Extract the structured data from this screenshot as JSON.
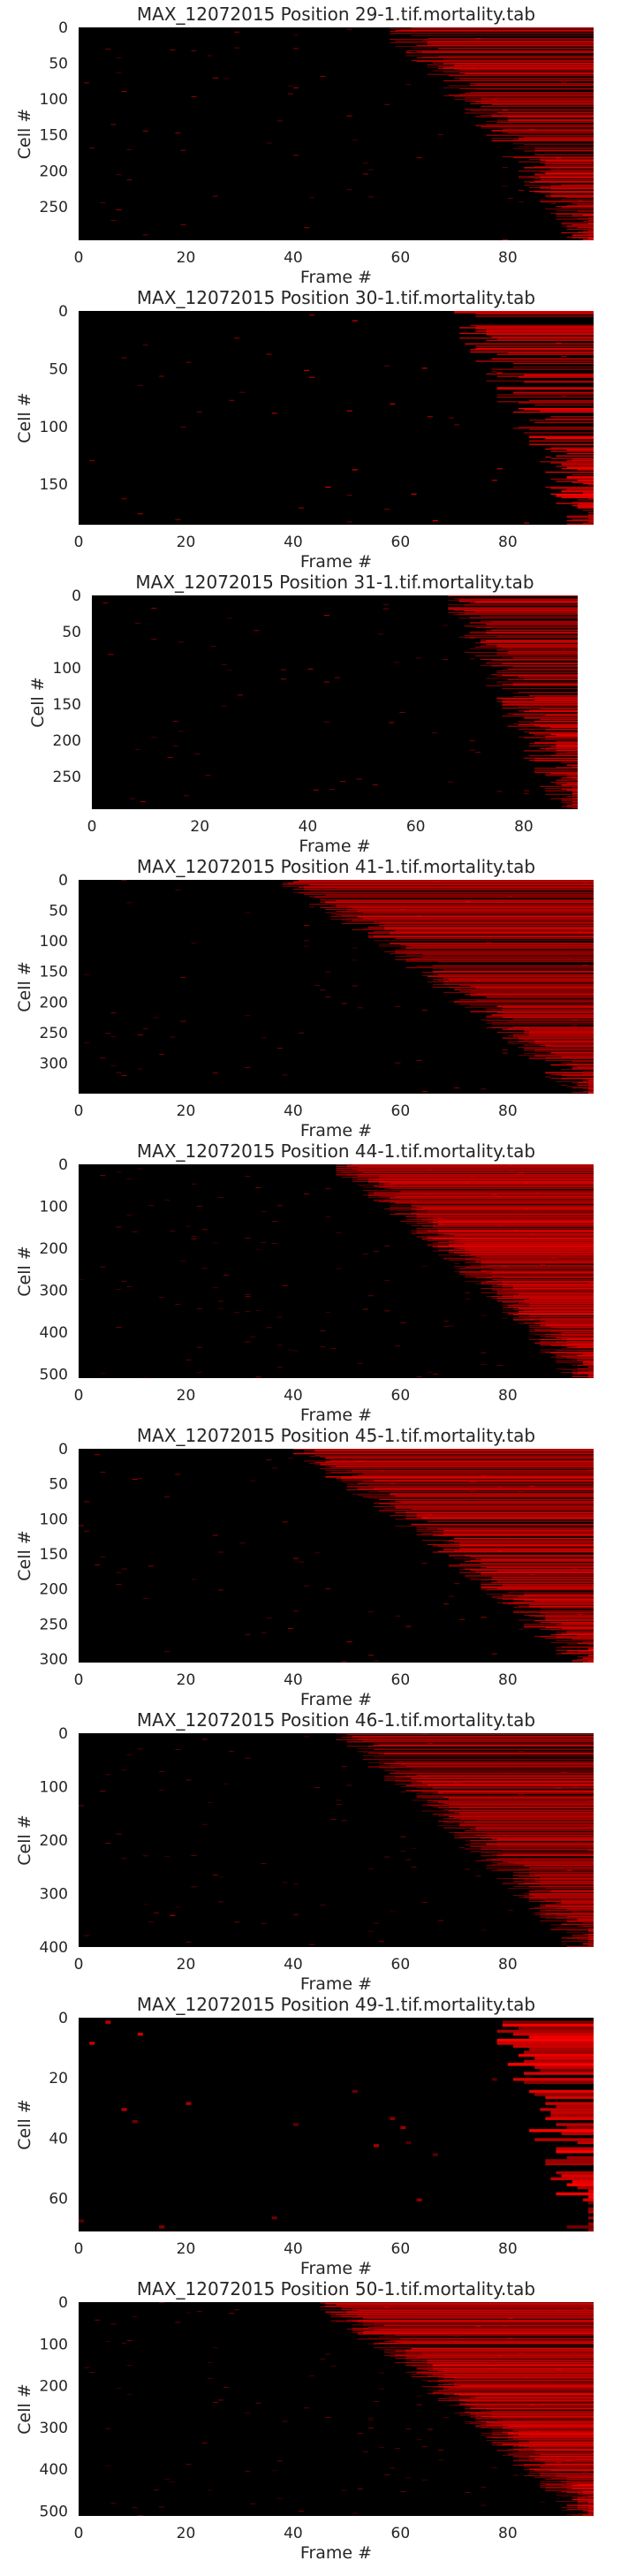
{
  "figure": {
    "background": "#ffffff",
    "text_color": "#262626",
    "heatmap_colors": {
      "low": "#000000",
      "high": "#ff0000"
    }
  },
  "chart_data": [
    {
      "type": "heatmap",
      "title": "MAX_12072015 Position 29-1.tif.mortality.tab",
      "xlabel": "Frame #",
      "ylabel": "Cell #",
      "xlim": [
        0,
        96
      ],
      "ylim": [
        0,
        297
      ],
      "x_ticks": [
        0,
        20,
        40,
        60,
        80
      ],
      "y_ticks": [
        0,
        50,
        100,
        150,
        200,
        250
      ],
      "n_cells": 297,
      "n_frames": 96,
      "onset_range": [
        58,
        95
      ],
      "never_dead_fraction": 0.45,
      "grid": false
    },
    {
      "type": "heatmap",
      "title": "MAX_12072015 Position 30-1.tif.mortality.tab",
      "xlabel": "Frame #",
      "ylabel": "Cell #",
      "xlim": [
        0,
        96
      ],
      "ylim": [
        0,
        185
      ],
      "x_ticks": [
        0,
        20,
        40,
        60,
        80
      ],
      "y_ticks": [
        0,
        50,
        100,
        150
      ],
      "n_cells": 185,
      "n_frames": 96,
      "onset_range": [
        70,
        95
      ],
      "never_dead_fraction": 0.4,
      "grid": false
    },
    {
      "type": "heatmap",
      "title": "MAX_12072015 Position 31-1.tif.mortality.tab",
      "xlabel": "Frame #",
      "ylabel": "Cell #",
      "xlim": [
        0,
        90
      ],
      "ylim": [
        0,
        295
      ],
      "x_ticks": [
        0,
        20,
        40,
        60,
        80
      ],
      "y_ticks": [
        0,
        50,
        100,
        150,
        200,
        250
      ],
      "n_cells": 295,
      "n_frames": 90,
      "onset_range": [
        66,
        89
      ],
      "never_dead_fraction": 0.35,
      "grid": false
    },
    {
      "type": "heatmap",
      "title": "MAX_12072015 Position 41-1.tif.mortality.tab",
      "xlabel": "Frame #",
      "ylabel": "Cell #",
      "xlim": [
        0,
        96
      ],
      "ylim": [
        0,
        350
      ],
      "x_ticks": [
        0,
        20,
        40,
        60,
        80
      ],
      "y_ticks": [
        0,
        50,
        100,
        150,
        200,
        250,
        300
      ],
      "n_cells": 350,
      "n_frames": 96,
      "onset_range": [
        38,
        95
      ],
      "never_dead_fraction": 0.3,
      "grid": false
    },
    {
      "type": "heatmap",
      "title": "MAX_12072015 Position 44-1.tif.mortality.tab",
      "xlabel": "Frame #",
      "ylabel": "Cell #",
      "xlim": [
        0,
        96
      ],
      "ylim": [
        0,
        510
      ],
      "x_ticks": [
        0,
        20,
        40,
        60,
        80
      ],
      "y_ticks": [
        0,
        100,
        200,
        300,
        400,
        500
      ],
      "n_cells": 510,
      "n_frames": 96,
      "onset_range": [
        48,
        95
      ],
      "never_dead_fraction": 0.25,
      "grid": false
    },
    {
      "type": "heatmap",
      "title": "MAX_12072015 Position 45-1.tif.mortality.tab",
      "xlabel": "Frame #",
      "ylabel": "Cell #",
      "xlim": [
        0,
        96
      ],
      "ylim": [
        0,
        305
      ],
      "x_ticks": [
        0,
        20,
        40,
        60,
        80
      ],
      "y_ticks": [
        0,
        50,
        100,
        150,
        200,
        250,
        300
      ],
      "n_cells": 305,
      "n_frames": 96,
      "onset_range": [
        40,
        95
      ],
      "never_dead_fraction": 0.25,
      "grid": false
    },
    {
      "type": "heatmap",
      "title": "MAX_12072015 Position 46-1.tif.mortality.tab",
      "xlabel": "Frame #",
      "ylabel": "Cell #",
      "xlim": [
        0,
        96
      ],
      "ylim": [
        0,
        400
      ],
      "x_ticks": [
        0,
        20,
        40,
        60,
        80
      ],
      "y_ticks": [
        0,
        100,
        200,
        300,
        400
      ],
      "n_cells": 400,
      "n_frames": 96,
      "onset_range": [
        48,
        95
      ],
      "never_dead_fraction": 0.3,
      "grid": false
    },
    {
      "type": "heatmap",
      "title": "MAX_12072015 Position 49-1.tif.mortality.tab",
      "xlabel": "Frame #",
      "ylabel": "Cell #",
      "xlim": [
        0,
        96
      ],
      "ylim": [
        0,
        71
      ],
      "x_ticks": [
        0,
        20,
        40,
        60,
        80
      ],
      "y_ticks": [
        0,
        20,
        40,
        60
      ],
      "n_cells": 71,
      "n_frames": 96,
      "onset_range": [
        78,
        95
      ],
      "never_dead_fraction": 0.3,
      "grid": false
    },
    {
      "type": "heatmap",
      "title": "MAX_12072015 Position 50-1.tif.mortality.tab",
      "xlabel": "Frame #",
      "ylabel": "Cell #",
      "xlim": [
        0,
        96
      ],
      "ylim": [
        0,
        512
      ],
      "x_ticks": [
        0,
        20,
        40,
        60,
        80
      ],
      "y_ticks": [
        0,
        100,
        200,
        300,
        400,
        500
      ],
      "n_cells": 512,
      "n_frames": 96,
      "onset_range": [
        45,
        95
      ],
      "never_dead_fraction": 0.25,
      "grid": false
    }
  ]
}
